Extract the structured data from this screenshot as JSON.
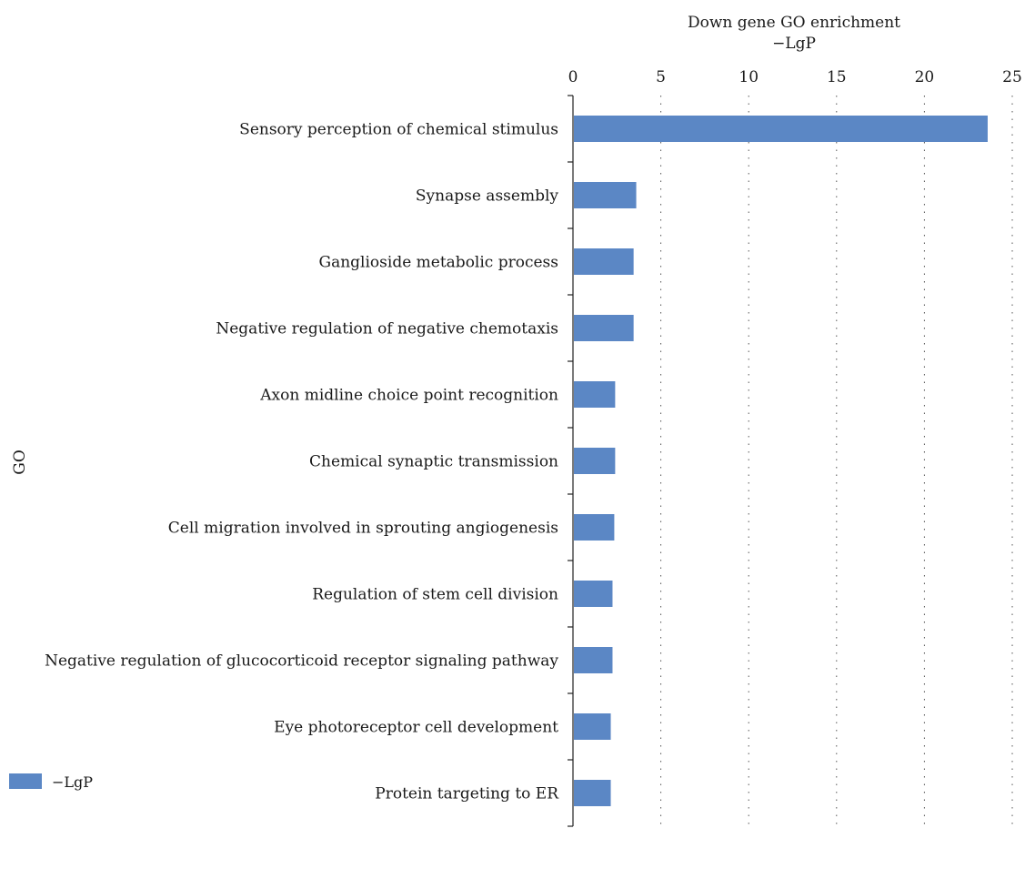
{
  "chart_data": {
    "type": "bar",
    "orientation": "horizontal",
    "title": "Down gene GO enrichment",
    "xlabel": "−LgP",
    "ylabel": "GO",
    "xlim": [
      0,
      25
    ],
    "xticks": [
      0,
      5,
      10,
      15,
      20,
      25
    ],
    "x_axis_position": "top",
    "grid": "vertical dotted",
    "legend_position": "bottom-left",
    "bar_color": "#5b87c5",
    "categories": [
      "Sensory perception of chemical stimulus",
      "Synapse assembly",
      "Ganglioside metabolic process",
      "Negative regulation of negative chemotaxis",
      "Axon midline choice point recognition",
      "Chemical synaptic transmission",
      "Cell migration involved in sprouting angiogenesis",
      "Regulation of stem cell division",
      "Negative regulation of glucocorticoid receptor signaling pathway",
      "Eye photoreceptor cell development",
      "Protein targeting to ER"
    ],
    "series": [
      {
        "name": "−LgP",
        "values": [
          23.6,
          3.6,
          3.45,
          3.45,
          2.4,
          2.4,
          2.35,
          2.25,
          2.25,
          2.15,
          2.15
        ]
      }
    ]
  }
}
